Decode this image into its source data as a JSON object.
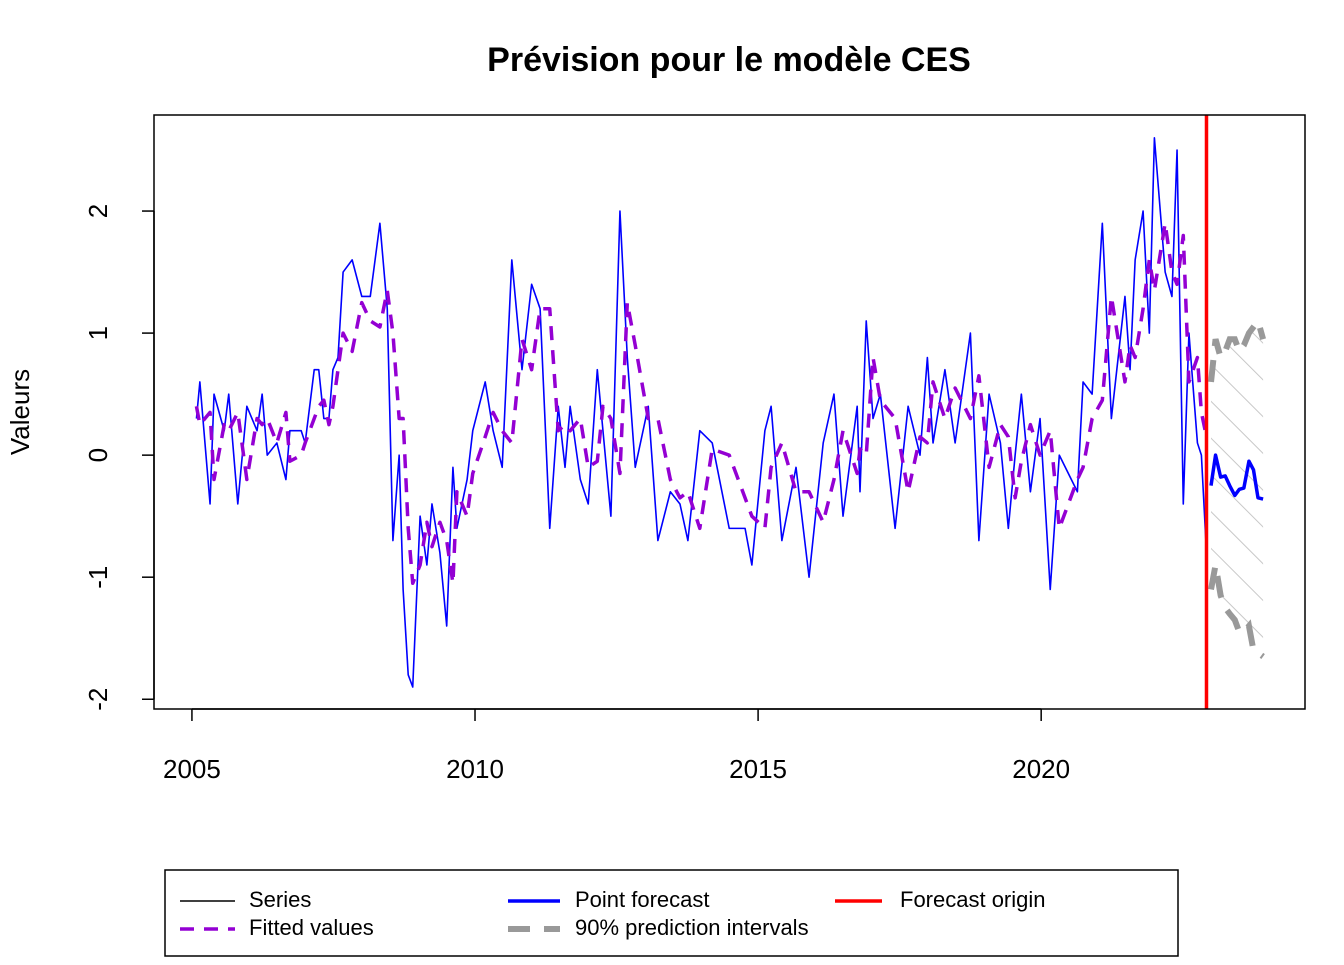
{
  "chart_data": {
    "type": "line",
    "title": "Prévision pour le modèle CES",
    "ylabel": "Valeurs",
    "xlim": [
      2004.33,
      2024.66
    ],
    "ylim": [
      -2.08,
      2.787
    ],
    "xticks": [
      2005,
      2010,
      2015,
      2020
    ],
    "yticks": [
      -2,
      -1,
      0,
      1,
      2
    ],
    "x": [
      2005.08,
      2005.14,
      2005.32,
      2005.39,
      2005.57,
      2005.65,
      2005.81,
      2005.97,
      2006.15,
      2006.24,
      2006.33,
      2006.5,
      2006.66,
      2006.73,
      2006.93,
      2007.0,
      2007.16,
      2007.24,
      2007.33,
      2007.42,
      2007.49,
      2007.58,
      2007.67,
      2007.83,
      2008.0,
      2008.15,
      2008.32,
      2008.45,
      2008.55,
      2008.66,
      2008.73,
      2008.82,
      2008.9,
      2009.03,
      2009.15,
      2009.24,
      2009.38,
      2009.5,
      2009.61,
      2009.68,
      2009.86,
      2009.96,
      2010.18,
      2010.32,
      2010.48,
      2010.65,
      2010.83,
      2011.0,
      2011.15,
      2011.32,
      2011.47,
      2011.59,
      2011.68,
      2011.86,
      2012.0,
      2012.16,
      2012.26,
      2012.4,
      2012.56,
      2012.69,
      2012.83,
      2013.06,
      2013.23,
      2013.45,
      2013.62,
      2013.76,
      2013.97,
      2014.19,
      2014.49,
      2014.77,
      2014.89,
      2015.12,
      2015.23,
      2015.42,
      2015.67,
      2015.9,
      2016.15,
      2016.34,
      2016.5,
      2016.75,
      2016.8,
      2016.91,
      2017.03,
      2017.16,
      2017.42,
      2017.65,
      2017.86,
      2017.99,
      2018.09,
      2018.3,
      2018.48,
      2018.75,
      2018.9,
      2019.08,
      2019.28,
      2019.42,
      2019.54,
      2019.65,
      2019.81,
      2019.98,
      2020.16,
      2020.32,
      2020.64,
      2020.74,
      2020.9,
      2021.08,
      2021.24,
      2021.48,
      2021.57,
      2021.66,
      2021.8,
      2021.91,
      2022.0,
      2022.19,
      2022.31,
      2022.4,
      2022.51,
      2022.61,
      2022.76,
      2022.83,
      2022.92
    ],
    "series": [
      {
        "name": "Series",
        "color": "#0000ff",
        "legend_color": "#000000",
        "values": [
          0.3,
          0.6,
          -0.4,
          0.5,
          0.2,
          0.5,
          -0.4,
          0.4,
          0.2,
          0.5,
          0.0,
          0.1,
          -0.2,
          0.2,
          0.2,
          0.1,
          0.7,
          0.7,
          0.3,
          0.3,
          0.7,
          0.8,
          1.5,
          1.6,
          1.3,
          1.3,
          1.9,
          1.2,
          -0.7,
          0.0,
          -1.1,
          -1.8,
          -1.9,
          -0.5,
          -0.9,
          -0.4,
          -0.8,
          -1.4,
          -0.1,
          -0.6,
          -0.2,
          0.2,
          0.6,
          0.2,
          -0.1,
          1.6,
          0.7,
          1.4,
          1.2,
          -0.6,
          0.4,
          -0.1,
          0.4,
          -0.2,
          -0.4,
          0.7,
          0.2,
          -0.5,
          2.0,
          0.8,
          -0.1,
          0.4,
          -0.7,
          -0.3,
          -0.4,
          -0.7,
          0.2,
          0.1,
          -0.6,
          -0.6,
          -0.9,
          0.2,
          0.4,
          -0.7,
          -0.1,
          -1.0,
          0.1,
          0.5,
          -0.5,
          0.4,
          -0.3,
          1.1,
          0.3,
          0.5,
          -0.6,
          0.4,
          0.0,
          0.8,
          0.1,
          0.7,
          0.1,
          1.0,
          -0.7,
          0.5,
          0.1,
          -0.6,
          0.0,
          0.5,
          -0.3,
          0.3,
          -1.1,
          0.0,
          -0.3,
          0.6,
          0.5,
          1.9,
          0.3,
          1.3,
          0.7,
          1.6,
          2.0,
          1.0,
          2.6,
          1.5,
          1.3,
          2.5,
          -0.4,
          1.0,
          0.1,
          0.0,
          -0.8
        ]
      },
      {
        "name": "Fitted values",
        "color": "#9400d3",
        "dashed": true,
        "values": [
          0.4,
          0.25,
          0.35,
          -0.2,
          0.25,
          0.2,
          0.35,
          -0.2,
          0.3,
          0.25,
          0.3,
          0.1,
          0.35,
          -0.05,
          0.0,
          0.1,
          0.3,
          0.4,
          0.45,
          0.25,
          0.4,
          0.7,
          1.0,
          0.85,
          1.25,
          1.1,
          1.05,
          1.35,
          1.0,
          0.3,
          0.3,
          -0.6,
          -1.05,
          -0.9,
          -0.55,
          -0.75,
          -0.55,
          -0.7,
          -1.05,
          -0.3,
          -0.5,
          -0.15,
          0.15,
          0.35,
          0.2,
          0.1,
          0.95,
          0.7,
          1.2,
          1.2,
          0.2,
          0.25,
          0.2,
          0.3,
          -0.1,
          -0.05,
          0.4,
          0.3,
          -0.15,
          1.25,
          0.9,
          0.3,
          0.3,
          -0.2,
          -0.35,
          -0.3,
          -0.6,
          0.05,
          0.0,
          -0.35,
          -0.5,
          -0.6,
          -0.1,
          0.1,
          -0.3,
          -0.3,
          -0.55,
          -0.2,
          0.2,
          -0.15,
          0.05,
          0.0,
          0.8,
          0.45,
          0.3,
          -0.3,
          0.15,
          0.1,
          0.6,
          0.3,
          0.55,
          0.3,
          0.65,
          -0.1,
          0.25,
          0.15,
          -0.35,
          -0.05,
          0.25,
          0.0,
          0.2,
          -0.6,
          -0.2,
          -0.1,
          0.3,
          0.45,
          1.3,
          0.6,
          0.9,
          0.8,
          1.2,
          1.6,
          1.35,
          1.9,
          1.5,
          1.4,
          1.8,
          0.6,
          0.8,
          0.35,
          0.15
        ]
      },
      {
        "name": "Point forecast",
        "color": "#0000ff",
        "x": [
          2023.0,
          2023.08,
          2023.17,
          2023.25,
          2023.33,
          2023.42,
          2023.5,
          2023.58,
          2023.67,
          2023.75,
          2023.83,
          2023.92
        ],
        "values": [
          -0.25,
          0.0,
          -0.18,
          -0.17,
          -0.25,
          -0.33,
          -0.28,
          -0.27,
          -0.05,
          -0.12,
          -0.35,
          -0.36
        ]
      },
      {
        "name": "90% prediction intervals",
        "color": "#999999",
        "dashed": true,
        "x": [
          2023.0,
          2023.08,
          2023.17,
          2023.25,
          2023.33,
          2023.42,
          2023.5,
          2023.58,
          2023.67,
          2023.75,
          2023.83,
          2023.92
        ],
        "upper": [
          0.6,
          0.95,
          0.8,
          0.85,
          0.95,
          0.95,
          0.85,
          0.9,
          1.0,
          1.05,
          1.1,
          0.95
        ],
        "lower": [
          -1.1,
          -0.9,
          -1.15,
          -1.25,
          -1.3,
          -1.35,
          -1.45,
          -1.45,
          -1.4,
          -1.6,
          -1.62,
          -1.65
        ]
      }
    ],
    "origin": {
      "name": "Forecast origin",
      "x": 2022.92,
      "color": "#ff0000"
    }
  }
}
